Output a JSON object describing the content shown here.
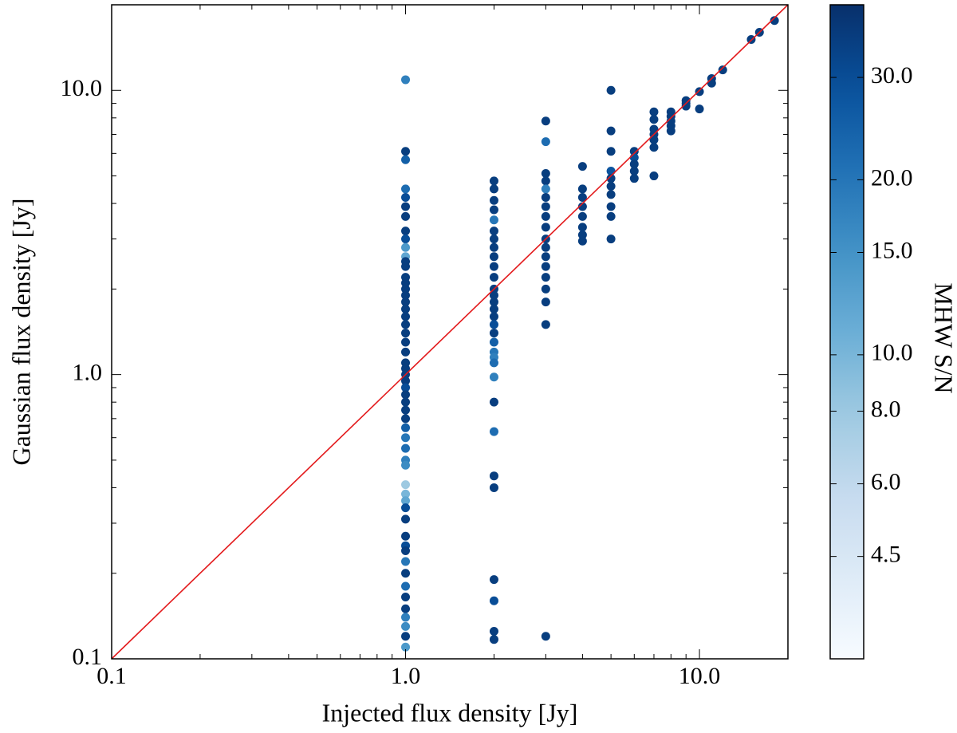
{
  "chart_data": {
    "type": "scatter",
    "xlabel": "Injected flux density [Jy]",
    "ylabel": "Gaussian flux density [Jy]",
    "xscale": "log",
    "yscale": "log",
    "xlim": [
      0.1,
      20
    ],
    "ylim": [
      0.1,
      20
    ],
    "xticks": [
      0.1,
      {
        "value": 1,
        "label": "1.0"
      },
      {
        "value": 10,
        "label": "10.0"
      }
    ],
    "yticks": [
      0.1,
      {
        "value": 1,
        "label": "1.0"
      },
      {
        "value": 10,
        "label": "10.0"
      }
    ],
    "minor_ticks": true,
    "colorbar": {
      "label": "MHW S/N",
      "scale": "log",
      "colormap": "Blues",
      "clim": [
        3,
        40
      ],
      "ticks": [
        4.5,
        {
          "value": 6,
          "label": "6.0"
        },
        {
          "value": 8,
          "label": "8.0"
        },
        {
          "value": 10,
          "label": "10.0"
        },
        {
          "value": 15,
          "label": "15.0"
        },
        {
          "value": 20,
          "label": "20.0"
        },
        {
          "value": 30,
          "label": "30.0"
        }
      ]
    },
    "lines": [
      {
        "x": [
          0.1,
          20
        ],
        "y": [
          0.1,
          20
        ],
        "color": "#e31a1c"
      }
    ],
    "x": [
      1,
      1,
      1,
      1,
      1,
      1,
      1,
      1,
      1,
      1,
      1,
      1,
      1,
      1,
      1,
      1,
      1,
      1,
      1,
      1,
      1,
      1,
      1,
      1,
      1,
      1,
      1,
      1,
      1,
      1,
      1,
      1,
      1,
      1,
      1,
      1,
      1,
      1,
      1,
      1,
      1,
      1,
      1,
      1,
      1,
      1,
      1,
      1,
      1,
      1,
      1,
      1,
      1,
      1,
      1,
      2,
      2,
      2,
      2,
      2,
      2,
      2,
      2,
      2,
      2,
      2,
      2,
      2,
      2,
      2,
      2,
      2,
      2,
      2,
      2,
      2,
      2,
      2,
      2,
      2,
      2,
      2,
      2,
      2,
      2,
      2,
      3,
      3,
      3,
      3,
      3,
      3,
      3,
      3,
      3,
      3,
      3,
      3,
      3,
      3,
      3,
      3,
      3,
      3,
      4,
      4,
      4,
      4,
      4,
      4,
      4,
      4,
      5,
      5,
      5,
      5,
      5,
      5,
      5,
      5,
      5,
      5,
      6,
      6,
      6,
      6,
      6,
      7,
      7,
      7,
      7,
      7,
      7,
      7,
      8,
      8,
      8,
      8,
      8,
      9,
      9,
      9,
      10,
      10,
      11,
      11,
      12,
      15,
      16,
      18
    ],
    "y": [
      10.9,
      6.1,
      5.7,
      4.5,
      4.2,
      3.9,
      3.6,
      3.2,
      3.0,
      2.8,
      2.6,
      2.5,
      2.4,
      2.2,
      2.1,
      2.0,
      1.9,
      1.8,
      1.7,
      1.6,
      1.5,
      1.4,
      1.3,
      1.2,
      1.1,
      1.05,
      1.0,
      0.95,
      0.9,
      0.85,
      0.8,
      0.75,
      0.7,
      0.65,
      0.6,
      0.55,
      0.5,
      0.48,
      0.41,
      0.38,
      0.36,
      0.34,
      0.31,
      0.27,
      0.25,
      0.24,
      0.22,
      0.2,
      0.18,
      0.165,
      0.15,
      0.14,
      0.13,
      0.12,
      0.11,
      4.8,
      4.5,
      4.1,
      3.8,
      3.5,
      3.2,
      3.0,
      2.8,
      2.6,
      2.4,
      2.2,
      2.0,
      1.9,
      1.8,
      1.7,
      1.6,
      1.5,
      1.4,
      1.3,
      1.2,
      1.15,
      1.1,
      0.98,
      0.8,
      0.63,
      0.44,
      0.4,
      0.19,
      0.16,
      0.125,
      0.117,
      7.8,
      6.6,
      5.1,
      4.8,
      4.5,
      4.2,
      3.9,
      3.6,
      3.3,
      3.0,
      2.8,
      2.6,
      2.4,
      2.2,
      2.0,
      1.8,
      1.5,
      0.12,
      5.4,
      4.5,
      4.2,
      3.9,
      3.6,
      3.3,
      3.1,
      2.95,
      10.0,
      7.2,
      6.1,
      5.2,
      4.9,
      4.6,
      4.3,
      3.9,
      3.6,
      3.0,
      6.1,
      5.8,
      5.5,
      5.2,
      4.9,
      8.4,
      7.9,
      7.3,
      7.0,
      6.7,
      6.3,
      5.0,
      8.4,
      8.1,
      7.8,
      7.5,
      7.2,
      9.2,
      9.0,
      8.8,
      9.9,
      8.6,
      11,
      10.6,
      11.8,
      15.1,
      16,
      17.6
    ],
    "c": [
      18,
      35,
      25,
      22,
      30,
      35,
      35,
      35,
      30,
      14,
      12,
      35,
      35,
      35,
      35,
      35,
      35,
      35,
      35,
      35,
      35,
      35,
      35,
      35,
      35,
      35,
      35,
      35,
      30,
      35,
      35,
      35,
      35,
      25,
      20,
      22,
      18,
      16,
      8,
      10,
      12,
      30,
      35,
      35,
      30,
      35,
      20,
      35,
      22,
      35,
      35,
      18,
      16,
      35,
      14,
      35,
      35,
      35,
      35,
      20,
      35,
      35,
      35,
      35,
      35,
      35,
      35,
      35,
      35,
      35,
      35,
      30,
      35,
      25,
      20,
      18,
      22,
      18,
      35,
      22,
      35,
      35,
      35,
      30,
      35,
      35,
      35,
      22,
      35,
      35,
      18,
      35,
      35,
      35,
      35,
      35,
      35,
      35,
      35,
      35,
      35,
      35,
      35,
      35,
      35,
      35,
      35,
      35,
      35,
      35,
      35,
      35,
      35,
      35,
      35,
      28,
      35,
      35,
      35,
      35,
      35,
      35,
      35,
      30,
      35,
      35,
      35,
      35,
      35,
      35,
      35,
      35,
      35,
      35,
      35,
      35,
      35,
      35,
      35,
      35,
      35,
      35,
      35,
      35,
      35,
      35,
      35,
      35,
      35,
      35
    ]
  }
}
